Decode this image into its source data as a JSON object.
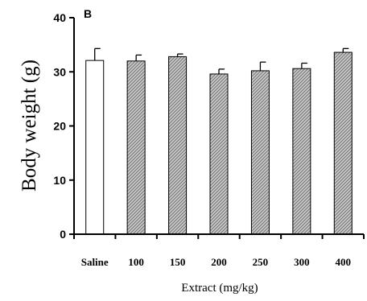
{
  "chart_data": {
    "type": "bar",
    "panel_label": "B",
    "categories": [
      "Saline",
      "100",
      "150",
      "200",
      "250",
      "300",
      "400"
    ],
    "values": [
      32.1,
      32.0,
      32.8,
      29.6,
      30.2,
      30.6,
      33.6
    ],
    "error": [
      2.2,
      1.1,
      0.5,
      0.9,
      1.6,
      1.0,
      0.7
    ],
    "xlabel": "Extract (mg/kg)",
    "ylabel": "Body weight (g)",
    "ylim": [
      0,
      40
    ],
    "yticks": [
      "0",
      "10",
      "20",
      "30",
      "40"
    ],
    "grid": false,
    "fill_styles": [
      "white",
      "hatched",
      "hatched",
      "hatched",
      "hatched",
      "hatched",
      "hatched"
    ]
  }
}
